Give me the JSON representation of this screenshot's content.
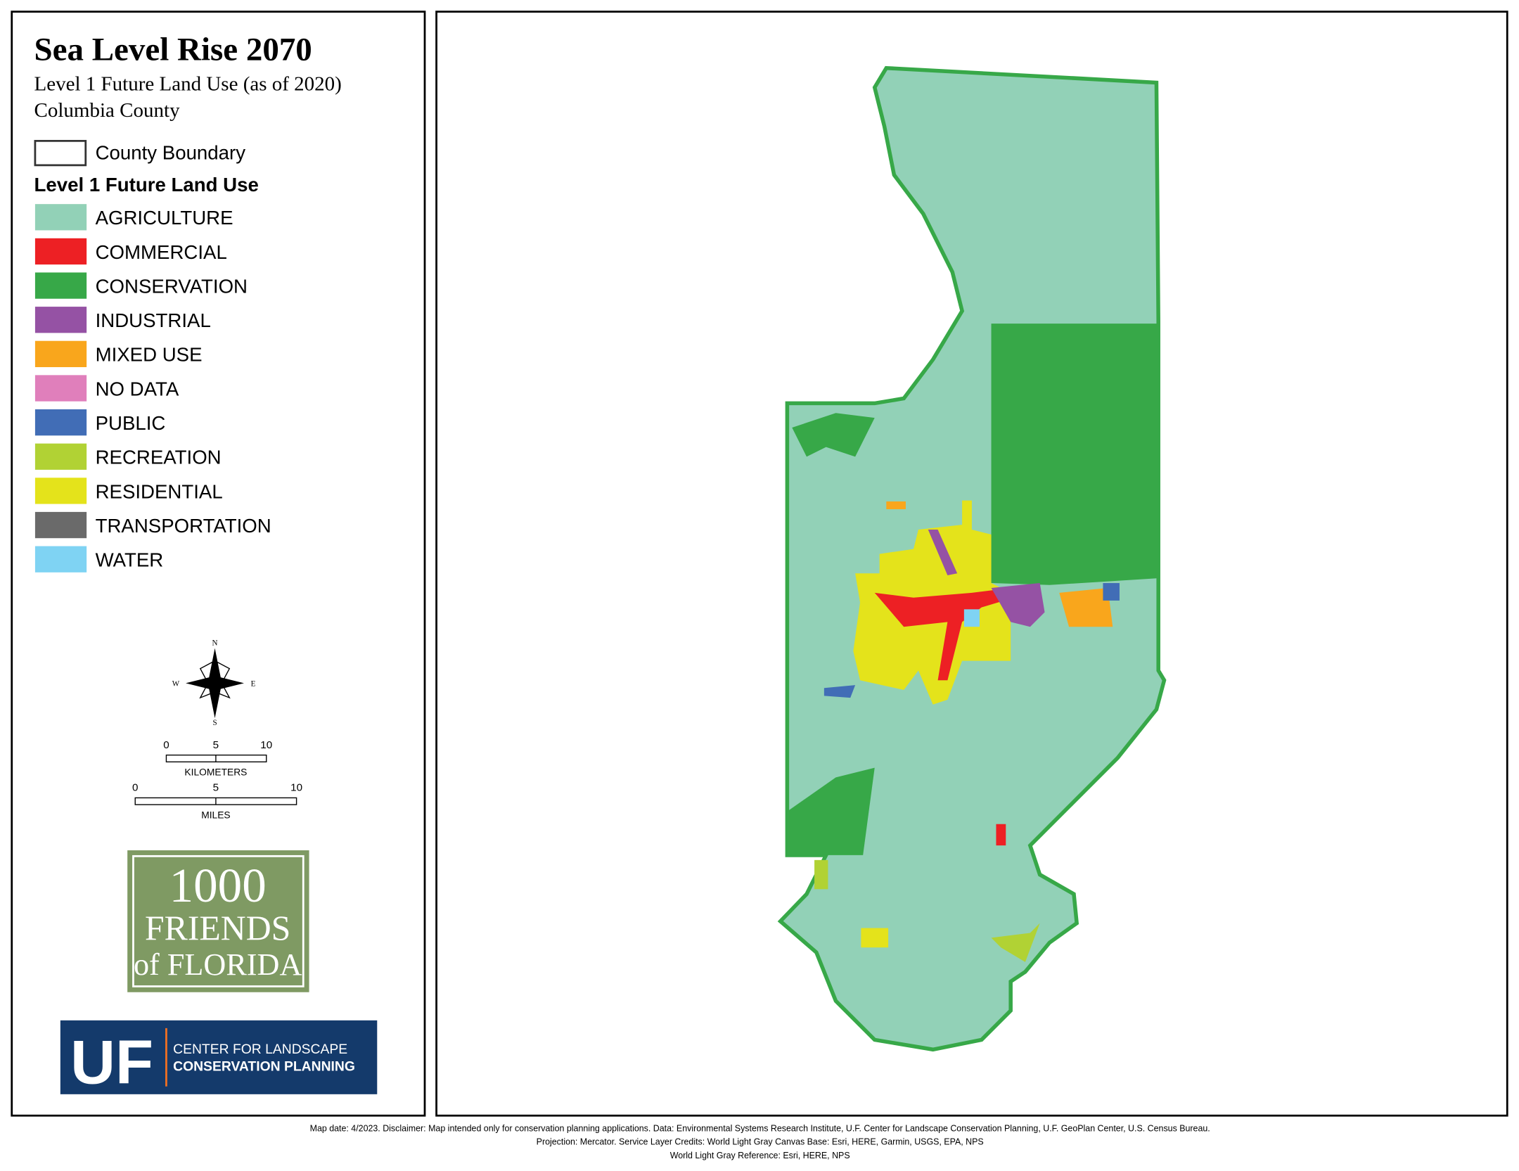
{
  "header": {
    "title": "Sea Level Rise 2070",
    "subtitle": "Level 1 Future Land Use (as of 2020)",
    "county": "Columbia County"
  },
  "legend": {
    "boundary": "County Boundary",
    "heading": "Level 1 Future Land Use",
    "items": [
      {
        "label": "AGRICULTURE",
        "color": "#92d1b7"
      },
      {
        "label": "COMMERCIAL",
        "color": "#ed2024"
      },
      {
        "label": "CONSERVATION",
        "color": "#37a848"
      },
      {
        "label": "INDUSTRIAL",
        "color": "#9552a4"
      },
      {
        "label": "MIXED USE",
        "color": "#f9a61c"
      },
      {
        "label": "NO DATA",
        "color": "#e07fbb"
      },
      {
        "label": "PUBLIC",
        "color": "#416db6"
      },
      {
        "label": "RECREATION",
        "color": "#b1d234"
      },
      {
        "label": "RESIDENTIAL",
        "color": "#e4e31b"
      },
      {
        "label": "TRANSPORTATION",
        "color": "#6a6a6a"
      },
      {
        "label": "WATER",
        "color": "#7fd3f3"
      }
    ]
  },
  "compass": {
    "n": "N",
    "s": "S",
    "e": "E",
    "w": "W"
  },
  "scale": {
    "km_ticks": [
      0,
      5,
      10
    ],
    "km_label": "KILOMETERS",
    "mi_ticks": [
      0,
      5,
      10
    ],
    "mi_label": "MILES"
  },
  "logos": {
    "friends": [
      "1000",
      "FRIENDS",
      "of FLORIDA"
    ],
    "uf": "UF",
    "center": [
      "CENTER FOR LANDSCAPE",
      "CONSERVATION PLANNING"
    ]
  },
  "footer": [
    "Map date: 4/2023.  Disclaimer: Map intended only for conservation planning applications.  Data: Environmental Systems Research Institute, U.F. Center for Landscape Conservation Planning, U.F. GeoPlan Center, U.S. Census Bureau.",
    "Projection: Mercator.  Service Layer Credits: World Light Gray Canvas Base: Esri, HERE, Garmin, USGS, EPA, NPS",
    "World Light Gray Reference: Esri, HERE, NPS"
  ]
}
